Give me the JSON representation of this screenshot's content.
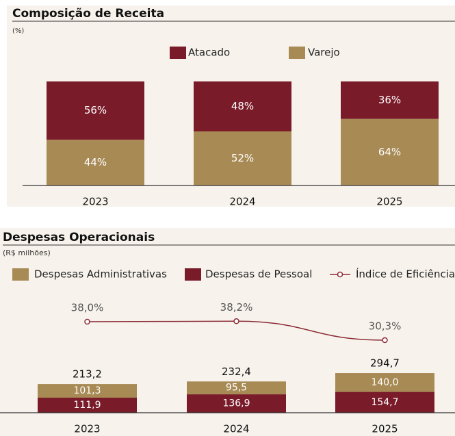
{
  "chart_data": [
    {
      "type": "bar",
      "stacked": true,
      "title": "Composição de Receita",
      "subtitle": "(%)",
      "categories": [
        "2023",
        "2024",
        "2025"
      ],
      "series": [
        {
          "name": "Atacado",
          "color": "#7a1b2a",
          "values": [
            56,
            48,
            36
          ],
          "value_labels": [
            "56%",
            "48%",
            "36%"
          ]
        },
        {
          "name": "Varejo",
          "color": "#a88a55",
          "values": [
            44,
            52,
            64
          ],
          "value_labels": [
            "44%",
            "52%",
            "64%"
          ]
        }
      ],
      "stack_order": [
        1,
        0
      ],
      "ylim": [
        0,
        100
      ]
    },
    {
      "type": "bar",
      "stacked": true,
      "title": "Despesas Operacionais",
      "subtitle": "(R$ milhões)",
      "categories": [
        "2023",
        "2024",
        "2025"
      ],
      "series": [
        {
          "name": "Despesas Administrativas",
          "color": "#a88a55",
          "values": [
            101.3,
            95.5,
            140.0
          ],
          "value_labels": [
            "101,3",
            "95,5",
            "140,0"
          ]
        },
        {
          "name": "Despesas de Pessoal",
          "color": "#7a1b2a",
          "values": [
            111.9,
            136.9,
            154.7
          ],
          "value_labels": [
            "111,9",
            "136,9",
            "154,7"
          ]
        },
        {
          "name": "Índice de Eficiência",
          "type": "line",
          "axis": "y2",
          "color": "#8b2a35",
          "values": [
            38.0,
            38.2,
            30.3
          ],
          "value_labels": [
            "38,0%",
            "38,2%",
            "30,3%"
          ]
        }
      ],
      "stack_order": [
        1,
        0
      ],
      "totals": [
        213.2,
        232.4,
        294.7
      ],
      "total_labels": [
        "213,2",
        "232,4",
        "294,7"
      ],
      "ylim": [
        0,
        1200
      ],
      "y2lim": [
        0,
        50
      ]
    }
  ]
}
